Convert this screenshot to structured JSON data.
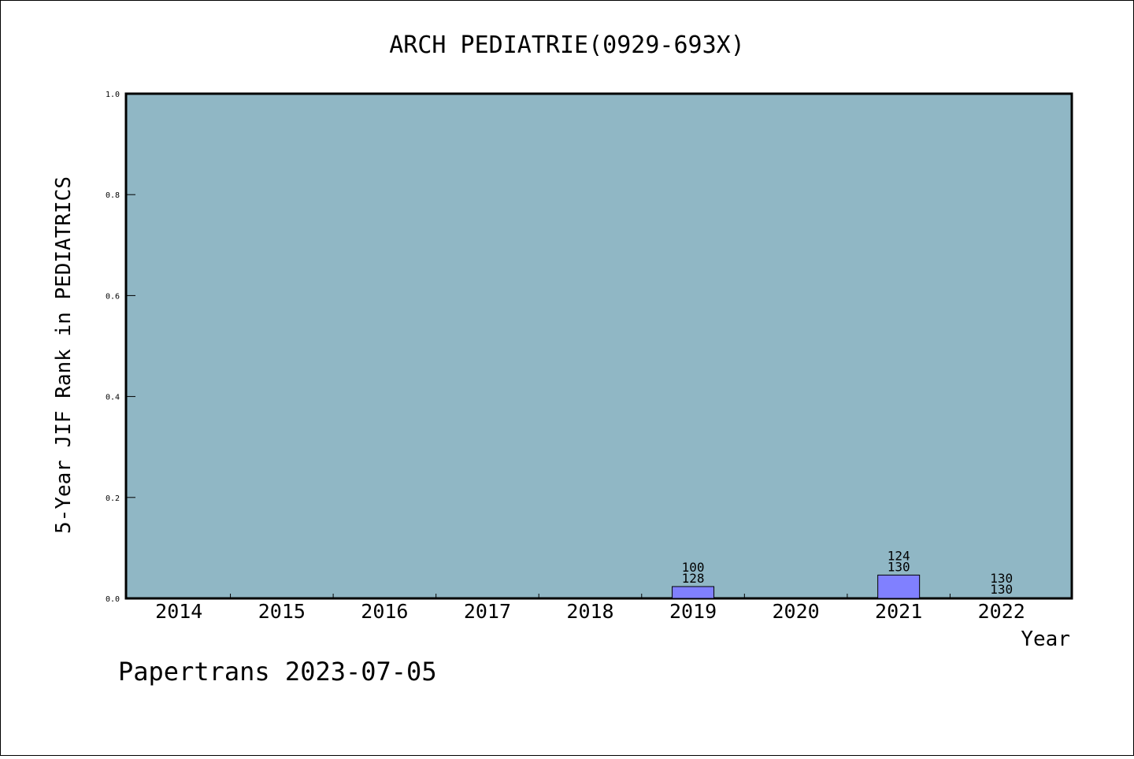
{
  "chart_data": {
    "type": "bar",
    "title": "ARCH PEDIATRIE(0929-693X)",
    "xlabel": "Year",
    "ylabel": "5-Year JIF Rank in PEDIATRICS",
    "ylim": [
      0,
      1.0
    ],
    "yticks": [
      "0.0",
      "0.2",
      "0.4",
      "0.6",
      "0.8",
      "1.0"
    ],
    "categories": [
      "2014",
      "2015",
      "2016",
      "2017",
      "2018",
      "2019",
      "2020",
      "2021",
      "2022"
    ],
    "values": [
      null,
      null,
      null,
      null,
      null,
      0.0234,
      null,
      0.0462,
      0.0008
    ],
    "rank_labels": [
      "",
      "",
      "",
      "",
      "",
      "100",
      "",
      "124",
      "130"
    ],
    "total_labels": [
      "",
      "",
      "",
      "",
      "",
      "128",
      "",
      "130",
      "130"
    ],
    "grid": false,
    "colors": {
      "plot_background": "#90b7c5",
      "bar_fill": "#8080ff",
      "bar_stroke": "#000000"
    }
  },
  "footer": {
    "watermark": "Papertrans 2023-07-05"
  }
}
